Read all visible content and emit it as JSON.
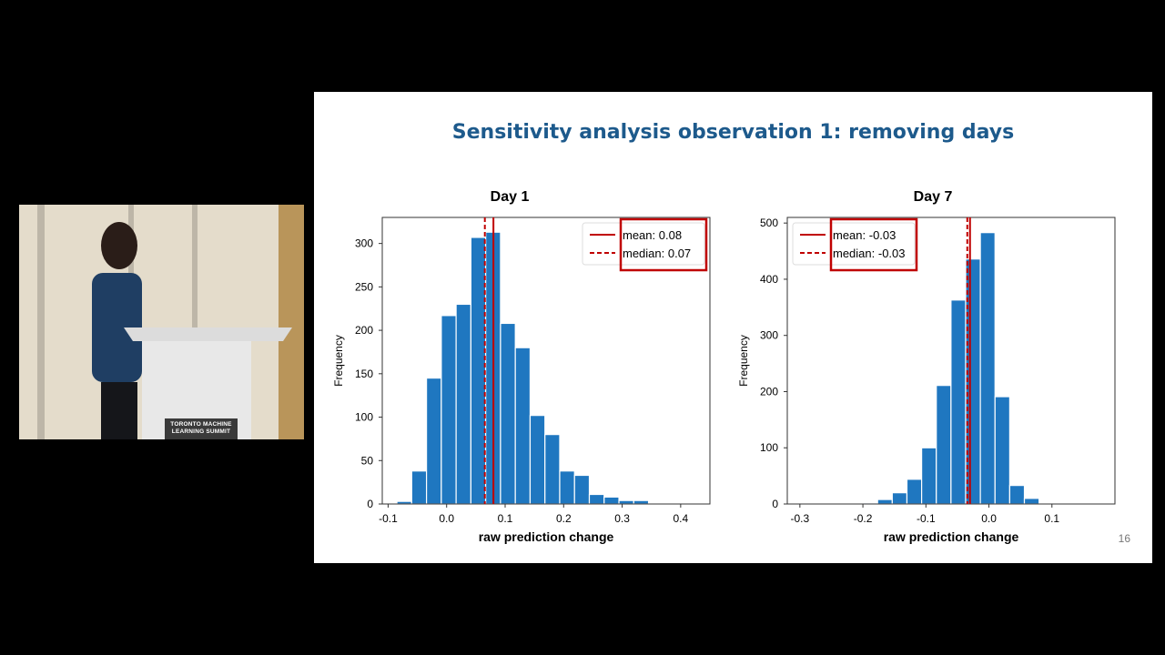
{
  "slide": {
    "title": "Sensitivity analysis observation 1: removing days",
    "page_number": "16",
    "title_color": "#1d5a8c"
  },
  "video": {
    "banner_text": "TORONTO MACHINE LEARNING SUMMIT"
  },
  "chart_data": [
    {
      "type": "bar",
      "title": "Day 1",
      "xlabel": "raw prediction change",
      "ylabel": "Frequency",
      "xlim": [
        -0.11,
        0.45
      ],
      "ylim": [
        0,
        330
      ],
      "xticks": [
        "-0.1",
        "0.0",
        "0.1",
        "0.2",
        "0.3",
        "0.4"
      ],
      "xtick_values": [
        -0.1,
        0.0,
        0.1,
        0.2,
        0.3,
        0.4
      ],
      "yticks": [
        0,
        50,
        100,
        150,
        200,
        250,
        300
      ],
      "bin_start": -0.085,
      "bin_width": 0.0253,
      "values": [
        3,
        38,
        145,
        217,
        230,
        307,
        313,
        208,
        180,
        102,
        80,
        38,
        33,
        11,
        8,
        4,
        4,
        1,
        1,
        1
      ],
      "mean": 0.08,
      "median": 0.07,
      "legend": [
        "mean: 0.08",
        "median: 0.07"
      ],
      "legend_position": "top-right",
      "bar_color": "#1f77c0",
      "line_color": "#c00000",
      "grid": false
    },
    {
      "type": "bar",
      "title": "Day 7",
      "xlabel": "raw prediction change",
      "ylabel": "Frequency",
      "xlim": [
        -0.32,
        0.2
      ],
      "ylim": [
        0,
        510
      ],
      "xticks": [
        "-0.3",
        "-0.2",
        "-0.1",
        "0.0",
        "0.1"
      ],
      "xtick_values": [
        -0.3,
        -0.2,
        -0.1,
        0.0,
        0.1
      ],
      "yticks": [
        0,
        100,
        200,
        300,
        400,
        500
      ],
      "bin_start": -0.2,
      "bin_width": 0.0233,
      "values": [
        2,
        8,
        20,
        44,
        100,
        211,
        363,
        436,
        483,
        191,
        33,
        10
      ],
      "mean": -0.03,
      "median": -0.03,
      "legend": [
        "mean: -0.03",
        "median: -0.03"
      ],
      "legend_position": "top-left",
      "bar_color": "#1f77c0",
      "line_color": "#c00000",
      "grid": false
    }
  ]
}
